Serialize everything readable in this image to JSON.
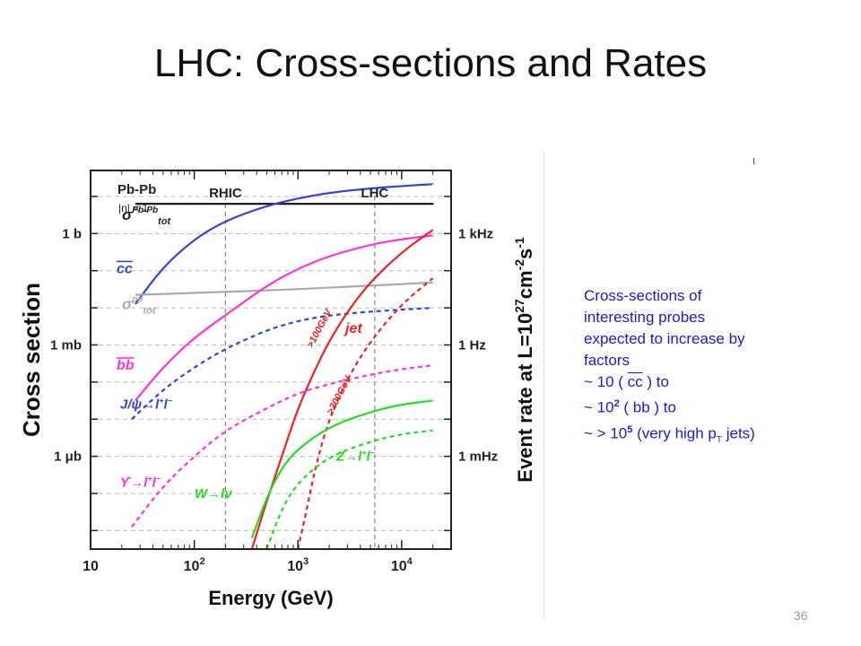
{
  "slide": {
    "title": "LHC: Cross-sections and Rates",
    "page_number": "36",
    "notes": {
      "lines": [
        "Cross-sections of",
        "interesting probes",
        "expected to increase by",
        "factors"
      ],
      "factor_cc": {
        "prefix": " ~ 10  ( ",
        "quark": "cc",
        "suffix": " )  to"
      },
      "factor_bb": {
        "prefix": " ~ 10",
        "exp": "2",
        "rest": "  ( bb )  to"
      },
      "factor_jets": {
        "prefix": " ~  > 10",
        "exp": "5",
        "rest": " (very high p",
        "sub": "T",
        "end": " jets)"
      }
    }
  },
  "chart_data": {
    "type": "line",
    "xlabel": "Energy (GeV)",
    "ylabel": "Cross section",
    "y2label_main": "Event rate at L=10",
    "y2label_exp": "27",
    "y2label_unit": "cm",
    "y2label_unit_exp": "-2",
    "y2label_s": "s",
    "y2label_s_exp": "-1",
    "x_scale": "log",
    "y_scale": "log",
    "xlim": [
      10,
      30000
    ],
    "x_ticks": [
      {
        "value": 10,
        "base": "10",
        "exp": ""
      },
      {
        "value": 100,
        "base": "10",
        "exp": "2"
      },
      {
        "value": 1000,
        "base": "10",
        "exp": "3"
      },
      {
        "value": 10000,
        "base": "10",
        "exp": "4"
      }
    ],
    "y_ticks_left": [
      {
        "decade": 0,
        "label": "1 b"
      },
      {
        "decade": -3,
        "label": "1 mb"
      },
      {
        "decade": -6,
        "label": "1 μb"
      }
    ],
    "y_ticks_right": [
      {
        "decade": 0,
        "label": "1 kHz"
      },
      {
        "decade": -3,
        "label": "1 Hz"
      },
      {
        "decade": -6,
        "label": "1 mHz"
      }
    ],
    "ylim_decades": [
      -8.5,
      1.7
    ],
    "system_label": "Pb-Pb",
    "eta_cut": "|η| < 1",
    "regions": [
      {
        "name": "RHIC",
        "x": 200
      },
      {
        "name": "LHC",
        "x": 5500
      }
    ],
    "series": [
      {
        "name": "σ_tot Pb-Pb",
        "label_main": "σ",
        "label_sup": "Pb-Pb",
        "label_sub": "tot",
        "color": "#111111",
        "style": "solid",
        "points": [
          [
            27,
            0.8
          ],
          [
            20000,
            0.8
          ]
        ]
      },
      {
        "name": "cc̄",
        "label_main": "cc",
        "color": "#3344dd",
        "style": "solid",
        "points": [
          [
            27,
            -1.9
          ],
          [
            50,
            -0.9
          ],
          [
            100,
            -0.15
          ],
          [
            200,
            0.35
          ],
          [
            500,
            0.75
          ],
          [
            1000,
            0.95
          ],
          [
            2000,
            1.1
          ],
          [
            5000,
            1.22
          ],
          [
            10000,
            1.28
          ],
          [
            20000,
            1.33
          ]
        ]
      },
      {
        "name": "σ_tot pp",
        "label_main": "σ",
        "label_sup": "pp",
        "label_sub": "tot",
        "color": "#aaaaaa",
        "style": "solid",
        "points": [
          [
            27,
            -1.65
          ],
          [
            100,
            -1.6
          ],
          [
            1000,
            -1.5
          ],
          [
            5000,
            -1.4
          ],
          [
            20000,
            -1.32
          ]
        ]
      },
      {
        "name": "bb̄",
        "label_main": "bb",
        "color": "#ff33dd",
        "style": "solid",
        "points": [
          [
            27,
            -4.5
          ],
          [
            50,
            -3.6
          ],
          [
            100,
            -2.8
          ],
          [
            200,
            -2.2
          ],
          [
            500,
            -1.4
          ],
          [
            1000,
            -0.95
          ],
          [
            2000,
            -0.6
          ],
          [
            5000,
            -0.3
          ],
          [
            10000,
            -0.15
          ],
          [
            20000,
            -0.05
          ]
        ]
      },
      {
        "name": "J/ψ → l+l−",
        "label_main": "J/ψ→l",
        "label_mid": "l",
        "color": "#3344dd",
        "style": "dashed",
        "points": [
          [
            25,
            -5.0
          ],
          [
            50,
            -4.2
          ],
          [
            100,
            -3.6
          ],
          [
            200,
            -3.1
          ],
          [
            500,
            -2.6
          ],
          [
            1000,
            -2.35
          ],
          [
            2000,
            -2.2
          ],
          [
            5000,
            -2.1
          ],
          [
            10000,
            -2.05
          ],
          [
            20000,
            -2.0
          ]
        ]
      },
      {
        "name": "jet >100GeV",
        "label_main": "jet",
        "annot": ">100GeV",
        "color": "#ee2222",
        "style": "solid",
        "points": [
          [
            360,
            -8.5
          ],
          [
            500,
            -7.2
          ],
          [
            700,
            -6.0
          ],
          [
            1000,
            -4.7
          ],
          [
            1500,
            -3.6
          ],
          [
            2000,
            -2.9
          ],
          [
            3000,
            -2.1
          ],
          [
            5000,
            -1.3
          ],
          [
            10000,
            -0.5
          ],
          [
            20000,
            0.1
          ]
        ]
      },
      {
        "name": "jet >200GeV",
        "annot": ">200GeV",
        "color": "#ee2222",
        "style": "dashed",
        "points": [
          [
            1000,
            -8.5
          ],
          [
            1200,
            -7.5
          ],
          [
            1500,
            -6.2
          ],
          [
            2000,
            -5.0
          ],
          [
            3000,
            -3.9
          ],
          [
            5000,
            -2.9
          ],
          [
            10000,
            -1.9
          ],
          [
            20000,
            -1.2
          ]
        ]
      },
      {
        "name": "ϒ → l+l−",
        "label_main": "ϒ→l",
        "color": "#ff33dd",
        "style": "dashed",
        "points": [
          [
            25,
            -7.9
          ],
          [
            50,
            -6.8
          ],
          [
            100,
            -6.0
          ],
          [
            200,
            -5.3
          ],
          [
            500,
            -4.7
          ],
          [
            1000,
            -4.3
          ],
          [
            2000,
            -4.05
          ],
          [
            5000,
            -3.8
          ],
          [
            10000,
            -3.65
          ],
          [
            20000,
            -3.55
          ]
        ]
      },
      {
        "name": "W → lν",
        "label_main": "W→lν",
        "color": "#22dd22",
        "style": "solid",
        "points": [
          [
            360,
            -8.2
          ],
          [
            500,
            -7.1
          ],
          [
            700,
            -6.3
          ],
          [
            1000,
            -5.8
          ],
          [
            2000,
            -5.2
          ],
          [
            5000,
            -4.8
          ],
          [
            10000,
            -4.6
          ],
          [
            20000,
            -4.5
          ]
        ]
      },
      {
        "name": "Z → l+l−",
        "label_main": "Z→l",
        "color": "#22dd22",
        "style": "dashed",
        "points": [
          [
            500,
            -8.5
          ],
          [
            700,
            -7.4
          ],
          [
            1000,
            -6.7
          ],
          [
            2000,
            -6.0
          ],
          [
            5000,
            -5.6
          ],
          [
            10000,
            -5.4
          ],
          [
            20000,
            -5.3
          ]
        ]
      }
    ]
  }
}
